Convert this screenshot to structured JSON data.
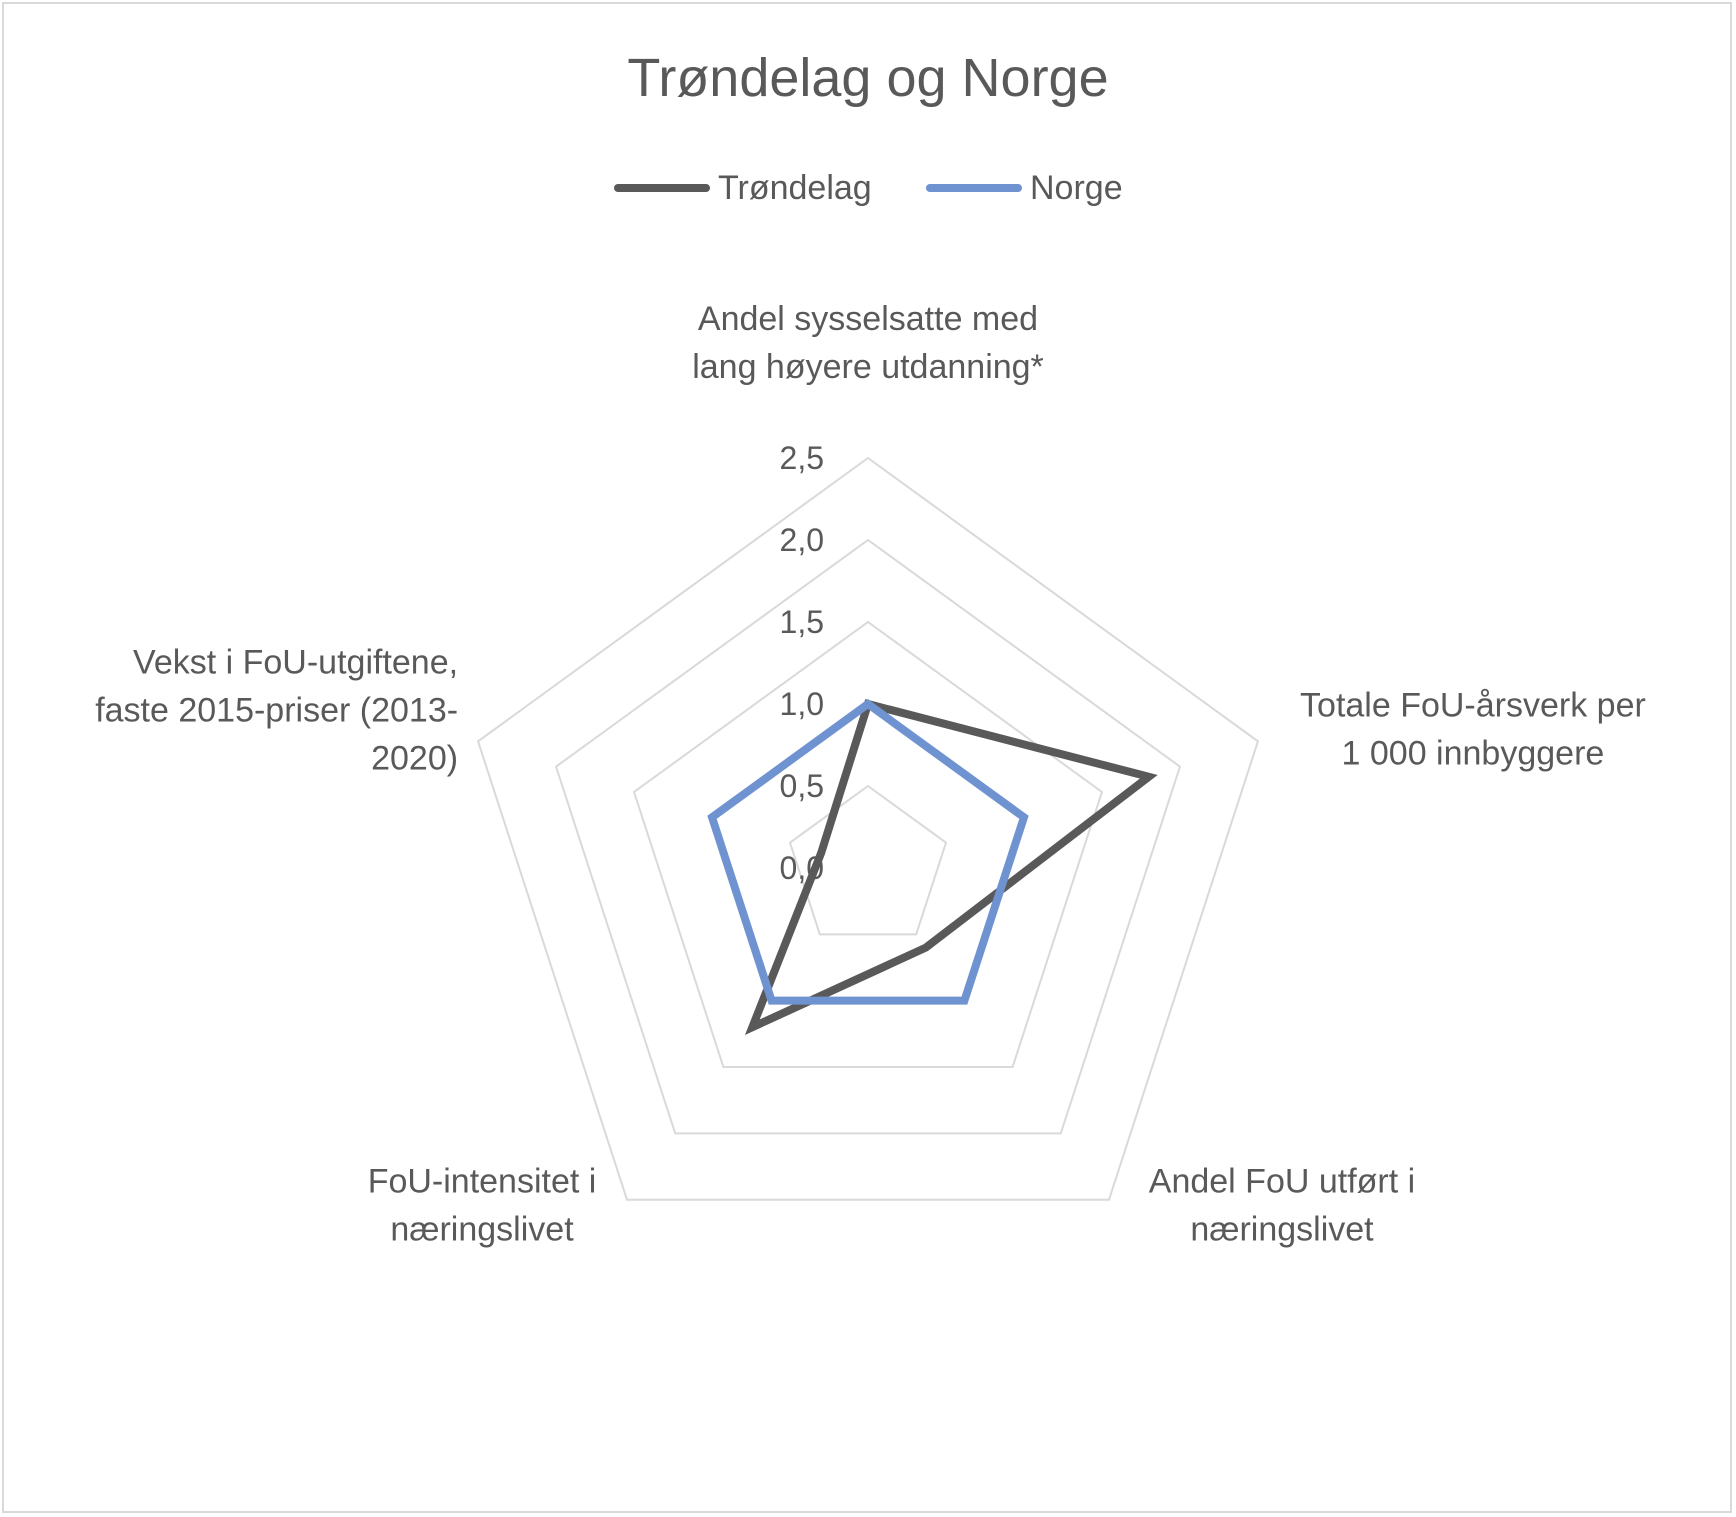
{
  "chart_data": {
    "type": "radar",
    "title": "Trøndelag og Norge",
    "categories": [
      "Andel sysselsatte med lang høyere utdanning*",
      "Totale FoU-årsverk per 1 000 innbyggere",
      "Andel FoU utført i næringslivet",
      "FoU-intensitet i næringslivet",
      "Vekst i FoU-utgiftene, faste 2015-priser (2013-2020)"
    ],
    "category_lines": [
      [
        "Andel sysselsatte med",
        "lang høyere utdanning*"
      ],
      [
        "Totale FoU-årsverk per",
        "1 000 innbyggere"
      ],
      [
        "Andel FoU utført i",
        "næringslivet"
      ],
      [
        "FoU-intensitet i",
        "næringslivet"
      ],
      [
        "Vekst i FoU-utgiftene,",
        "faste 2015-priser (2013-",
        "2020)"
      ]
    ],
    "series": [
      {
        "name": "Trøndelag",
        "color": "#595959",
        "values": [
          1.0,
          1.8,
          0.6,
          1.2,
          0.3
        ]
      },
      {
        "name": "Norge",
        "color": "#6f93d1",
        "values": [
          1.0,
          1.0,
          1.0,
          1.0,
          1.0
        ]
      }
    ],
    "rlim": [
      0,
      2.5
    ],
    "ticks": [
      "0,0",
      "0,5",
      "1,0",
      "1,5",
      "2,0",
      "2,5"
    ],
    "grid": true,
    "legend_position": "top",
    "gridline_color": "#d9d9d9"
  }
}
